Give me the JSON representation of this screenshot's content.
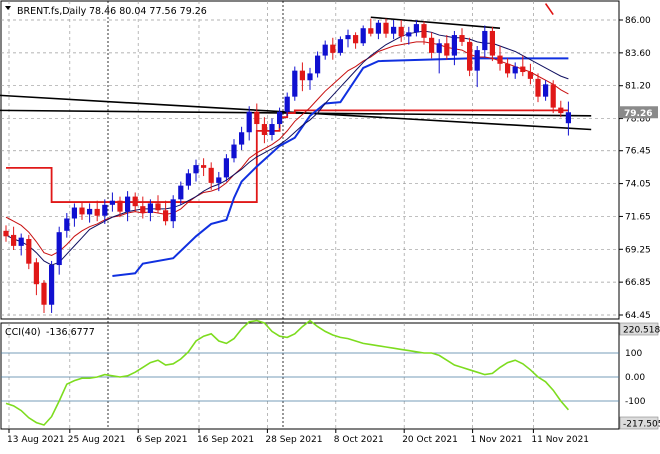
{
  "chart_data": [
    {
      "type": "candlestick",
      "symbol": "BRENT.fs,Daily",
      "ohlc_header": "78.46 80.04 77.56 79.26",
      "current_price_label": "79.26",
      "y_ticks": [
        "86.00",
        "83.60",
        "81.20",
        "78.80",
        "76.45",
        "74.05",
        "71.65",
        "69.25",
        "66.85",
        "64.45"
      ],
      "y_tick_values": [
        86.0,
        83.6,
        81.2,
        78.8,
        76.45,
        74.05,
        71.65,
        69.25,
        66.85,
        64.45
      ],
      "x_labels": [
        "13 Aug 2021",
        "25 Aug 2021",
        "6 Sep 2021",
        "16 Sep 2021",
        "28 Sep 2021",
        "8 Oct 2021",
        "20 Oct 2021",
        "1 Nov 2021",
        "11 Nov 2021"
      ],
      "x_label_index": [
        0,
        8,
        17,
        25,
        34,
        43,
        52,
        61,
        69
      ],
      "candles": [
        [
          70.6,
          71.0,
          69.8,
          70.2
        ],
        [
          70.3,
          70.9,
          69.2,
          69.5
        ],
        [
          69.5,
          70.4,
          68.8,
          70.1
        ],
        [
          70.0,
          70.3,
          67.8,
          68.2
        ],
        [
          68.3,
          68.6,
          65.9,
          66.7
        ],
        [
          66.8,
          67.0,
          64.6,
          65.2
        ],
        [
          65.2,
          68.4,
          64.6,
          68.1
        ],
        [
          68.1,
          70.9,
          67.4,
          70.5
        ],
        [
          70.6,
          71.9,
          70.1,
          71.5
        ],
        [
          71.5,
          72.6,
          70.9,
          72.3
        ],
        [
          72.3,
          72.7,
          71.4,
          71.8
        ],
        [
          71.8,
          72.6,
          71.2,
          72.2
        ],
        [
          72.2,
          72.8,
          71.3,
          71.7
        ],
        [
          71.7,
          72.9,
          71.1,
          72.5
        ],
        [
          72.5,
          73.4,
          72.0,
          72.8
        ],
        [
          72.8,
          73.1,
          71.6,
          72.0
        ],
        [
          72.0,
          73.5,
          71.3,
          73.1
        ],
        [
          73.1,
          73.4,
          72.0,
          72.4
        ],
        [
          72.4,
          73.1,
          71.5,
          71.9
        ],
        [
          71.9,
          72.9,
          71.3,
          72.6
        ],
        [
          72.6,
          73.2,
          71.9,
          72.1
        ],
        [
          72.1,
          72.8,
          71.0,
          71.3
        ],
        [
          71.3,
          73.2,
          70.8,
          72.9
        ],
        [
          72.9,
          74.2,
          72.5,
          73.9
        ],
        [
          73.9,
          75.1,
          73.6,
          74.8
        ],
        [
          74.8,
          75.8,
          74.2,
          75.4
        ],
        [
          75.4,
          75.9,
          74.6,
          75.2
        ],
        [
          75.2,
          75.6,
          73.6,
          74.1
        ],
        [
          74.1,
          74.9,
          73.5,
          74.5
        ],
        [
          74.5,
          76.2,
          74.2,
          75.9
        ],
        [
          75.9,
          77.3,
          75.6,
          76.9
        ],
        [
          76.9,
          78.2,
          76.5,
          77.8
        ],
        [
          77.8,
          79.7,
          77.2,
          79.3
        ],
        [
          79.3,
          79.9,
          77.9,
          78.4
        ],
        [
          78.4,
          78.9,
          77.0,
          77.6
        ],
        [
          77.6,
          78.8,
          77.2,
          78.4
        ],
        [
          78.4,
          79.6,
          78.1,
          79.3
        ],
        [
          79.3,
          80.7,
          79.0,
          80.4
        ],
        [
          80.4,
          82.6,
          80.1,
          82.3
        ],
        [
          82.3,
          82.9,
          80.8,
          81.6
        ],
        [
          81.6,
          82.5,
          80.9,
          82.1
        ],
        [
          82.1,
          83.7,
          81.8,
          83.4
        ],
        [
          83.4,
          84.5,
          83.1,
          84.2
        ],
        [
          84.2,
          84.7,
          83.1,
          83.6
        ],
        [
          83.6,
          84.8,
          83.4,
          84.6
        ],
        [
          84.6,
          85.3,
          84.0,
          84.9
        ],
        [
          84.9,
          85.1,
          83.9,
          84.3
        ],
        [
          84.3,
          85.6,
          84.1,
          85.4
        ],
        [
          85.4,
          86.1,
          84.8,
          85.0
        ],
        [
          85.0,
          86.0,
          84.6,
          85.8
        ],
        [
          85.8,
          86.1,
          84.7,
          85.0
        ],
        [
          85.0,
          86.0,
          84.6,
          85.5
        ],
        [
          85.5,
          86.0,
          84.4,
          84.8
        ],
        [
          84.8,
          85.5,
          84.2,
          85.1
        ],
        [
          85.1,
          86.0,
          84.8,
          85.7
        ],
        [
          85.7,
          85.9,
          84.2,
          84.7
        ],
        [
          84.7,
          85.1,
          83.2,
          83.6
        ],
        [
          83.6,
          84.6,
          82.1,
          84.3
        ],
        [
          84.3,
          84.9,
          83.1,
          83.4
        ],
        [
          83.4,
          85.2,
          82.7,
          84.9
        ],
        [
          84.9,
          85.4,
          84.1,
          84.4
        ],
        [
          84.4,
          84.7,
          81.9,
          82.3
        ],
        [
          82.3,
          84.1,
          81.1,
          83.8
        ],
        [
          83.8,
          85.6,
          83.3,
          85.2
        ],
        [
          85.2,
          85.5,
          83.0,
          83.4
        ],
        [
          83.4,
          84.1,
          82.3,
          82.8
        ],
        [
          82.8,
          83.2,
          81.8,
          82.1
        ],
        [
          82.1,
          82.9,
          81.7,
          82.6
        ],
        [
          82.6,
          83.4,
          81.9,
          82.2
        ],
        [
          82.2,
          82.8,
          81.3,
          81.7
        ],
        [
          81.7,
          82.1,
          80.0,
          80.4
        ],
        [
          80.4,
          81.6,
          80.1,
          81.3
        ],
        [
          81.3,
          81.6,
          79.2,
          79.6
        ],
        [
          79.6,
          80.1,
          78.9,
          79.2
        ],
        [
          78.46,
          80.04,
          77.56,
          79.26
        ]
      ],
      "sma_line": [
        70.3,
        70.0,
        69.8,
        69.5,
        69.0,
        68.4,
        68.1,
        68.3,
        68.9,
        69.5,
        70.1,
        70.7,
        71.0,
        71.3,
        71.6,
        71.8,
        72.0,
        72.1,
        72.2,
        72.2,
        72.2,
        72.2,
        72.3,
        72.5,
        72.8,
        73.1,
        73.5,
        73.8,
        74.0,
        74.3,
        74.7,
        75.1,
        75.6,
        76.0,
        76.3,
        76.6,
        76.9,
        77.3,
        77.8,
        78.3,
        78.7,
        79.2,
        79.9,
        80.5,
        81.1,
        81.7,
        82.3,
        82.9,
        83.4,
        83.8,
        84.2,
        84.5,
        84.8,
        85.0,
        85.1,
        85.2,
        85.1,
        84.9,
        84.8,
        84.7,
        84.7,
        84.6,
        84.4,
        84.3,
        84.3,
        84.1,
        83.9,
        83.7,
        83.4,
        83.1,
        82.8,
        82.5,
        82.2,
        81.9,
        81.7
      ],
      "ema_line": [
        71.6,
        71.3,
        71.0,
        70.5,
        69.8,
        69.0,
        68.8,
        69.1,
        69.6,
        70.2,
        70.6,
        70.9,
        71.1,
        71.4,
        71.6,
        71.7,
        71.9,
        72.0,
        71.9,
        72.0,
        71.9,
        71.8,
        71.9,
        72.2,
        72.7,
        73.1,
        73.4,
        73.5,
        73.7,
        74.1,
        74.7,
        75.2,
        75.9,
        76.3,
        76.6,
        76.9,
        77.3,
        77.9,
        78.6,
        79.1,
        79.6,
        80.2,
        80.8,
        81.3,
        81.8,
        82.3,
        82.6,
        83.0,
        83.3,
        83.7,
        83.9,
        84.1,
        84.2,
        84.3,
        84.4,
        84.4,
        84.3,
        84.2,
        84.0,
        83.9,
        83.8,
        83.5,
        83.3,
        83.3,
        83.2,
        83.0,
        82.8,
        82.6,
        82.4,
        82.2,
        81.9,
        81.6,
        81.3,
        80.9,
        80.6
      ],
      "stop_line": [
        [
          0,
          75.2
        ],
        [
          5,
          75.2
        ],
        [
          6,
          72.7
        ],
        [
          32,
          72.7
        ],
        [
          33,
          77.9
        ],
        [
          36,
          78.9
        ],
        [
          37,
          79.2
        ],
        [
          38,
          79.4
        ],
        [
          74,
          79.4
        ]
      ],
      "blue_channel": [
        [
          14,
          67.3
        ],
        [
          17,
          67.5
        ],
        [
          18,
          68.2
        ],
        [
          22,
          68.6
        ],
        [
          25,
          70.2
        ],
        [
          27,
          71.1
        ],
        [
          29,
          71.4
        ],
        [
          30,
          73.0
        ],
        [
          31,
          74.2
        ],
        [
          33,
          75.3
        ],
        [
          36,
          76.8
        ],
        [
          38,
          77.4
        ],
        [
          40,
          79.0
        ],
        [
          42,
          79.9
        ],
        [
          44,
          80.0
        ],
        [
          47,
          82.5
        ],
        [
          49,
          83.0
        ],
        [
          61,
          83.2
        ],
        [
          74,
          83.2
        ]
      ],
      "trendline_a": [
        [
          -1,
          80.5
        ],
        [
          77,
          78.0
        ]
      ],
      "trendline_b": [
        [
          -1,
          79.4
        ],
        [
          77,
          79.0
        ]
      ],
      "trendline_top": [
        [
          48,
          86.2
        ],
        [
          65,
          85.4
        ]
      ],
      "arrow_segment": [
        [
          71,
          87.2
        ],
        [
          72,
          86.4
        ]
      ],
      "cci": {
        "label": "CCI(40)",
        "value_label": "-136.6777",
        "max_label": "220.5184",
        "min_label": "-217.505",
        "levels": [
          "100",
          "0.00",
          "-100"
        ],
        "level_values": [
          100,
          0,
          -100
        ],
        "values": [
          -110,
          -120,
          -140,
          -170,
          -190,
          -200,
          -165,
          -100,
          -30,
          -15,
          -5,
          -5,
          0,
          10,
          5,
          0,
          5,
          20,
          40,
          60,
          70,
          50,
          55,
          75,
          105,
          150,
          170,
          180,
          150,
          140,
          160,
          200,
          230,
          235,
          225,
          190,
          170,
          165,
          180,
          210,
          235,
          210,
          190,
          175,
          165,
          160,
          150,
          140,
          135,
          130,
          125,
          120,
          115,
          110,
          105,
          100,
          100,
          90,
          70,
          50,
          40,
          30,
          20,
          10,
          15,
          40,
          60,
          70,
          55,
          30,
          0,
          -20,
          -55,
          -100,
          -136.68
        ]
      }
    }
  ]
}
